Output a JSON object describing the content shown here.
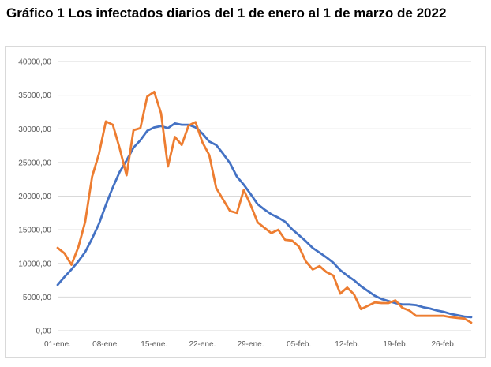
{
  "title": "Gráfico 1 Los infectados diarios del 1 de enero al 1 de marzo de 2022",
  "chart_data": {
    "type": "line",
    "title": "Gráfico 1 Los infectados diarios del 1 de enero al 1 de marzo de 2022",
    "xlabel": "",
    "ylabel": "",
    "ylim": [
      0,
      40000
    ],
    "yticks": [
      "0,00",
      "5000,00",
      "10000,00",
      "15000,00",
      "20000,00",
      "25000,00",
      "30000,00",
      "35000,00",
      "40000,00"
    ],
    "ytick_values": [
      0,
      5000,
      10000,
      15000,
      20000,
      25000,
      30000,
      35000,
      40000
    ],
    "xticks": [
      "01-ene.",
      "08-ene.",
      "15-ene.",
      "22-ene.",
      "29-ene.",
      "05-feb.",
      "12-feb.",
      "19-feb.",
      "26-feb."
    ],
    "xtick_days": [
      0,
      7,
      14,
      21,
      28,
      35,
      42,
      49,
      56
    ],
    "grid": true,
    "legend": "none",
    "series": [
      {
        "color": "#4472c4",
        "values": [
          6800,
          8000,
          9100,
          10300,
          11700,
          13700,
          15900,
          18700,
          21300,
          23600,
          25300,
          27200,
          28300,
          29700,
          30200,
          30400,
          30100,
          30800,
          30600,
          30600,
          30200,
          29300,
          28100,
          27600,
          26300,
          24900,
          22900,
          21700,
          20300,
          18800,
          18000,
          17300,
          16800,
          16200,
          15100,
          14200,
          13300,
          12300,
          11600,
          10900,
          10100,
          9000,
          8200,
          7500,
          6600,
          5900,
          5200,
          4700,
          4400,
          4100,
          3900,
          3900,
          3800,
          3500,
          3300,
          3000,
          2800,
          2500,
          2300,
          2100,
          2000
        ]
      },
      {
        "color": "#ed7d31",
        "values": [
          12300,
          11500,
          9800,
          12400,
          16200,
          22900,
          26300,
          31100,
          30600,
          27100,
          23100,
          29800,
          30100,
          34800,
          35500,
          32300,
          24400,
          28800,
          27600,
          30500,
          31000,
          28000,
          26100,
          21200,
          19500,
          17800,
          17500,
          20900,
          18700,
          16100,
          15300,
          14500,
          15000,
          13500,
          13400,
          12500,
          10300,
          9100,
          9600,
          8700,
          8200,
          5500,
          6400,
          5400,
          3200,
          3700,
          4200,
          4100,
          4100,
          4500,
          3400,
          3000,
          2200,
          2200,
          2200,
          2200,
          2200,
          2000,
          1900,
          1800,
          1200
        ]
      }
    ]
  }
}
